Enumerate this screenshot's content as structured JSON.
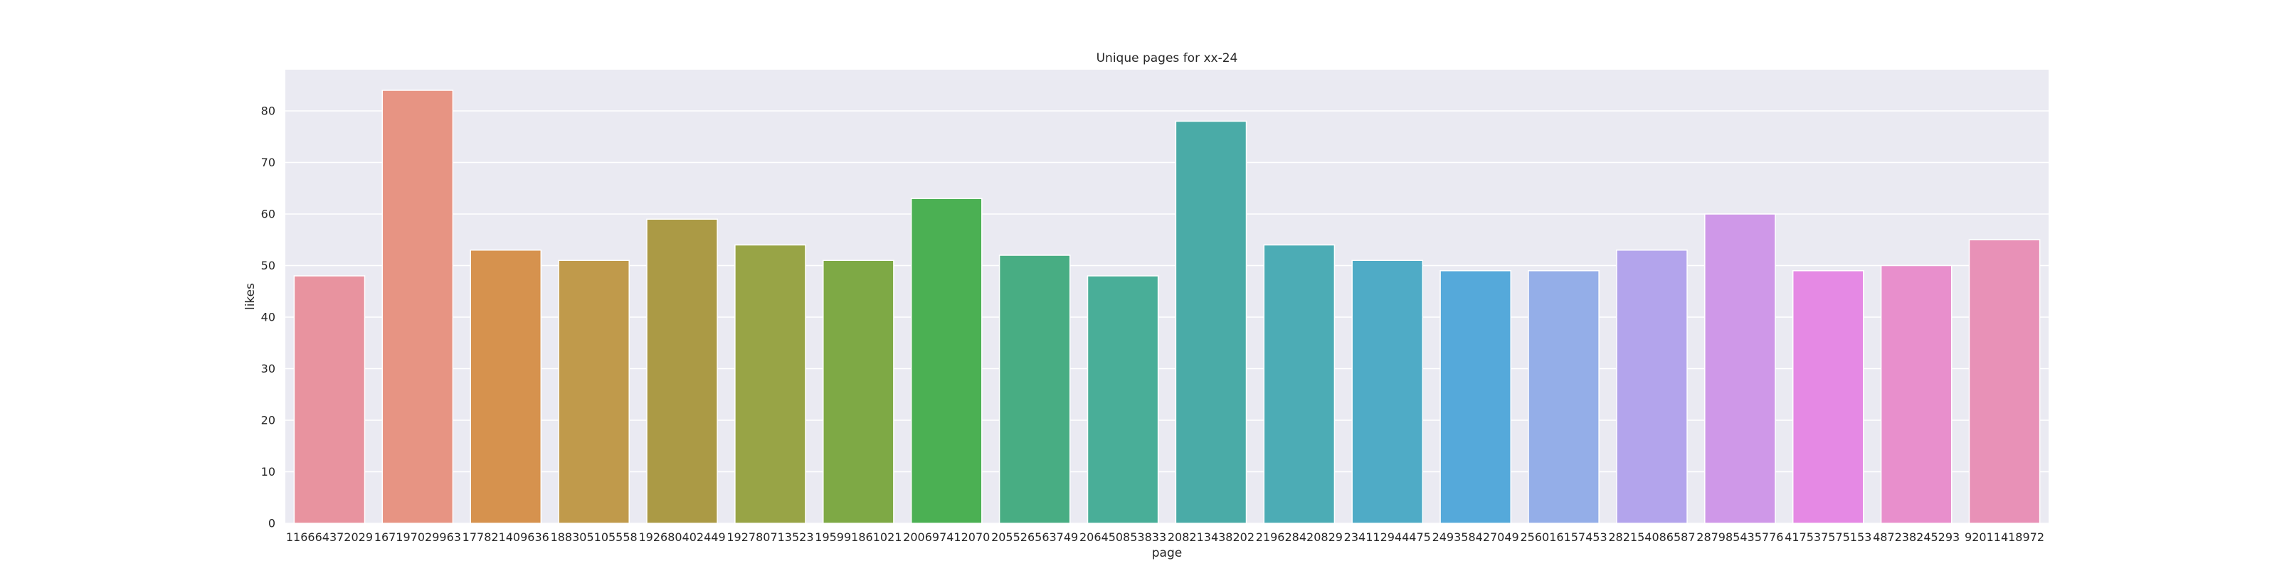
{
  "chart_data": {
    "type": "bar",
    "title": "Unique pages for xx-24",
    "xlabel": "page",
    "ylabel": "likes",
    "ylim": [
      0,
      88
    ],
    "yticks": [
      0,
      10,
      20,
      30,
      40,
      50,
      60,
      70,
      80
    ],
    "grid": true,
    "categories": [
      "116664372029",
      "167197029963",
      "177821409636",
      "188305105558",
      "192680402449",
      "192780713523",
      "195991861021",
      "200697412070",
      "205526563749",
      "206450853833",
      "208213438202",
      "219628420829",
      "234112944475",
      "249358427049",
      "256016157453",
      "282154086587",
      "287985435776",
      "417537575153",
      "487238245293",
      "92011418972"
    ],
    "values": [
      48,
      84,
      53,
      51,
      59,
      54,
      51,
      63,
      52,
      48,
      78,
      54,
      51,
      49,
      49,
      53,
      60,
      49,
      50,
      55
    ],
    "colors": [
      "#e8939f",
      "#e79483",
      "#d6924e",
      "#c09a4b",
      "#ab9a45",
      "#98a446",
      "#7ea945",
      "#4bb053",
      "#48ad83",
      "#49ae98",
      "#4aaba7",
      "#4cacb5",
      "#4fabc6",
      "#55a9da",
      "#94aee8",
      "#b3a4ec",
      "#cf98e8",
      "#e589e4",
      "#e88fcc",
      "#e891b7"
    ],
    "plot_background": "#eaeaf2",
    "grid_color": "#ffffff"
  }
}
